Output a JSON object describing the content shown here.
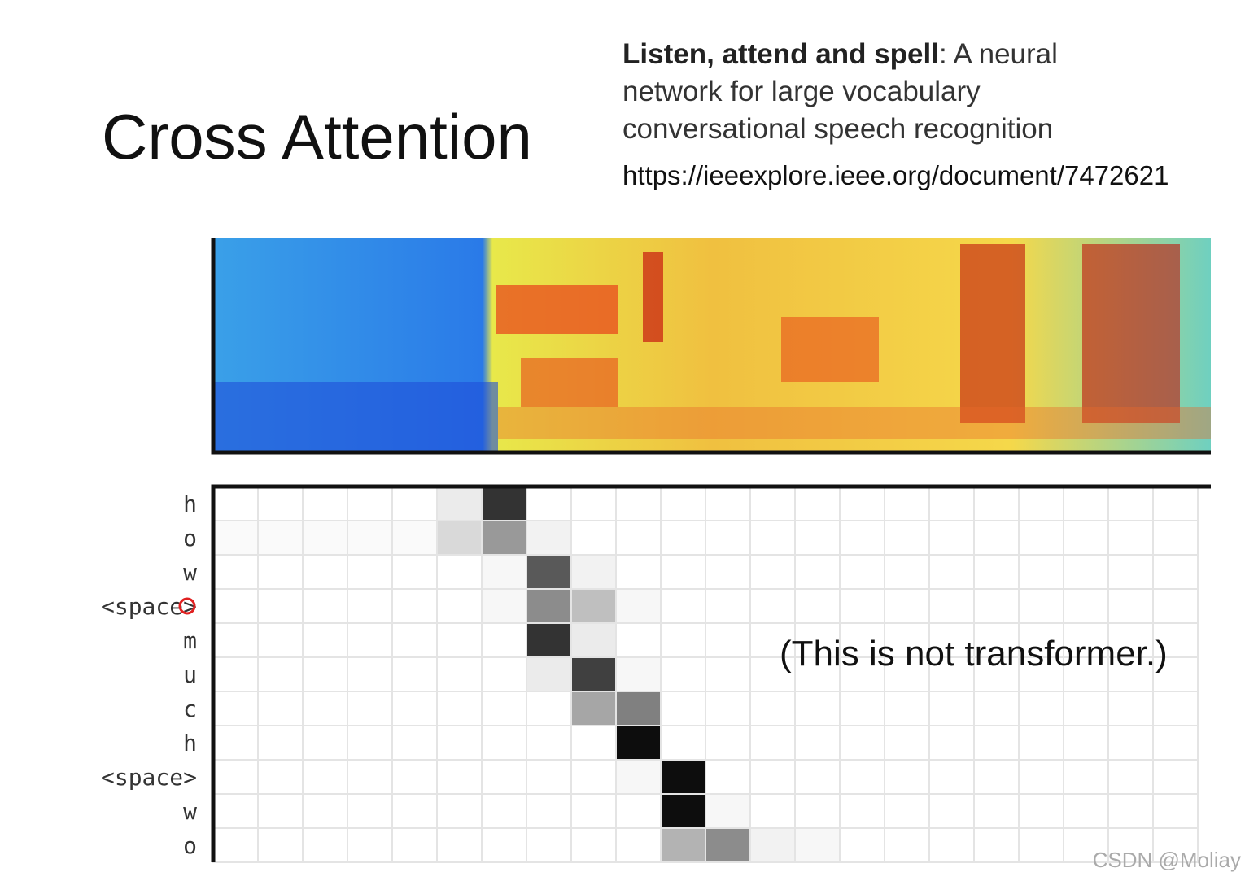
{
  "title": "Cross Attention",
  "reference": {
    "title": "Listen, attend and spell",
    "lines": [
      ": A neural",
      "network for large vocabulary",
      "conversational speech recognition"
    ],
    "url": "https://ieeexplore.ieee.org/document/7472621"
  },
  "attention": {
    "rows": [
      "h",
      "o",
      "w",
      "<space>",
      "m",
      "u",
      "c",
      "h",
      "<space>",
      "w",
      "o"
    ],
    "weights": [
      [
        0,
        0,
        0,
        0,
        0,
        0.08,
        0.8,
        0,
        0,
        0,
        0,
        0,
        0,
        0,
        0,
        0,
        0,
        0,
        0,
        0,
        0,
        0
      ],
      [
        0.02,
        0.02,
        0.02,
        0.02,
        0.02,
        0.15,
        0.4,
        0.05,
        0,
        0,
        0,
        0,
        0,
        0,
        0,
        0,
        0,
        0,
        0,
        0,
        0,
        0
      ],
      [
        0,
        0,
        0,
        0,
        0,
        0,
        0.03,
        0.65,
        0.05,
        0,
        0,
        0,
        0,
        0,
        0,
        0,
        0,
        0,
        0,
        0,
        0,
        0
      ],
      [
        0,
        0,
        0,
        0,
        0,
        0,
        0.03,
        0.45,
        0.25,
        0.03,
        0,
        0,
        0,
        0,
        0,
        0,
        0,
        0,
        0,
        0,
        0,
        0
      ],
      [
        0,
        0,
        0,
        0,
        0,
        0,
        0,
        0.8,
        0.08,
        0,
        0,
        0,
        0,
        0,
        0,
        0,
        0,
        0,
        0,
        0,
        0,
        0
      ],
      [
        0,
        0,
        0,
        0,
        0,
        0,
        0,
        0.08,
        0.75,
        0.03,
        0,
        0,
        0,
        0,
        0,
        0,
        0,
        0,
        0,
        0,
        0,
        0
      ],
      [
        0,
        0,
        0,
        0,
        0,
        0,
        0,
        0,
        0.35,
        0.5,
        0,
        0,
        0,
        0,
        0,
        0,
        0,
        0,
        0,
        0,
        0,
        0
      ],
      [
        0,
        0,
        0,
        0,
        0,
        0,
        0,
        0,
        0,
        0.95,
        0,
        0,
        0,
        0,
        0,
        0,
        0,
        0,
        0,
        0,
        0,
        0
      ],
      [
        0,
        0,
        0,
        0,
        0,
        0,
        0,
        0,
        0,
        0.03,
        0.95,
        0,
        0,
        0,
        0,
        0,
        0,
        0,
        0,
        0,
        0,
        0
      ],
      [
        0,
        0,
        0,
        0,
        0,
        0,
        0,
        0,
        0,
        0,
        0.95,
        0.03,
        0,
        0,
        0,
        0,
        0,
        0,
        0,
        0,
        0,
        0
      ],
      [
        0,
        0,
        0,
        0,
        0,
        0,
        0,
        0,
        0,
        0,
        0.3,
        0.45,
        0.05,
        0.03,
        0,
        0,
        0,
        0,
        0,
        0,
        0,
        0
      ]
    ]
  },
  "note": "(This is not transformer.)",
  "watermark": "CSDN @Moliay"
}
